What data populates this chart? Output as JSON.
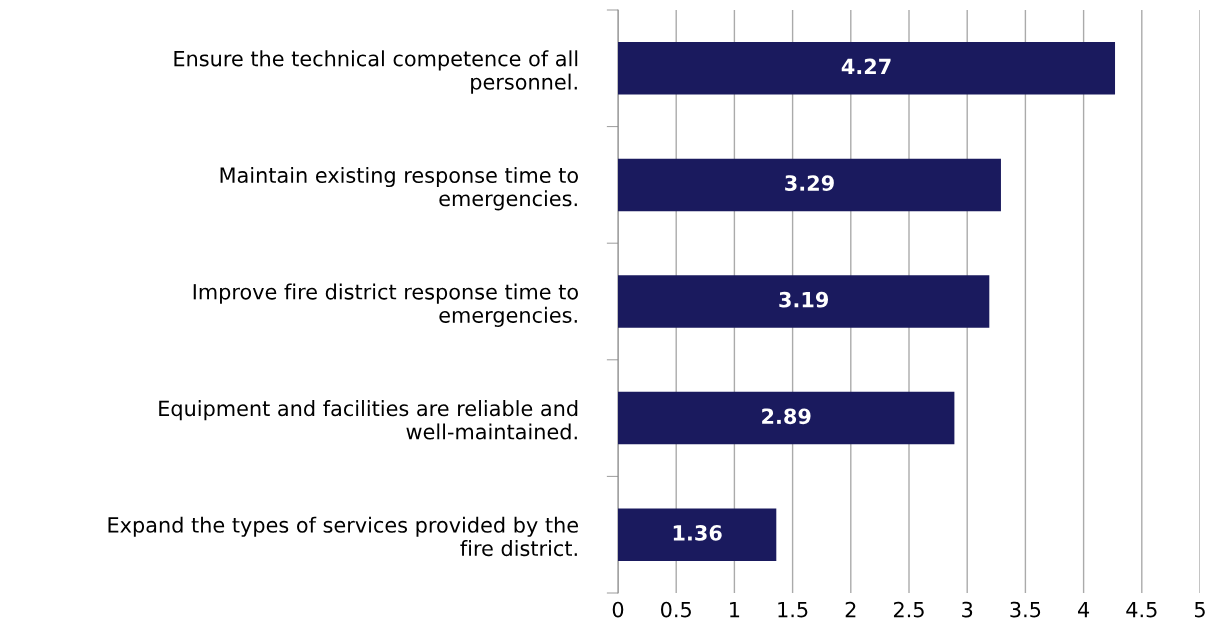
{
  "chart_data": {
    "type": "bar",
    "orientation": "horizontal",
    "categories": [
      "Ensure the technical competence of all\npersonnel.",
      "Maintain existing response time to\nemergencies.",
      "Improve fire district response time to\nemergencies.",
      "Equipment and facilities are reliable and\nwell-maintained.",
      "Expand the types of services provided by the\nfire district."
    ],
    "values": [
      4.27,
      3.29,
      3.19,
      2.89,
      1.36
    ],
    "color": "#1a1a5e",
    "xlim": [
      0,
      5
    ],
    "xticks": [
      0,
      0.5,
      1,
      1.5,
      2,
      2.5,
      3,
      3.5,
      4,
      4.5,
      5
    ],
    "grid": "x",
    "data_labels": true
  }
}
